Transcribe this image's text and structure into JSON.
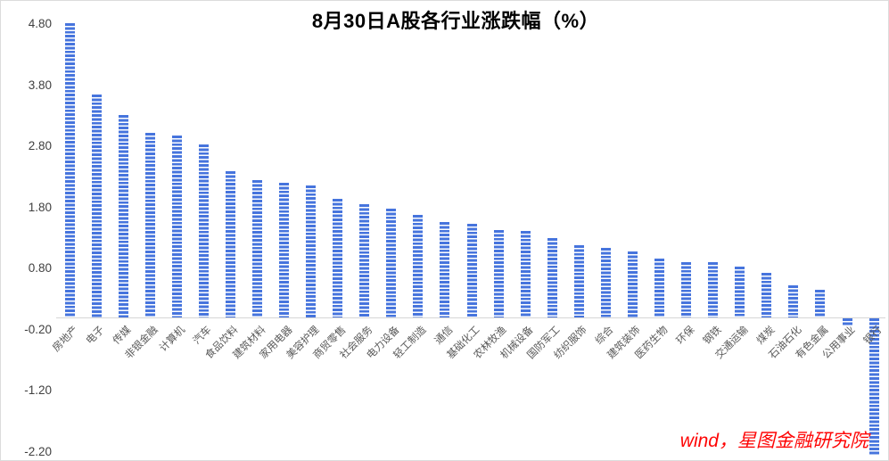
{
  "page": {
    "title": "8月30日A股各行业涨跌幅（%）",
    "watermark": "wind，星图金融研究院"
  },
  "colors": {
    "bar": "#4674dd",
    "axis_line": "#d6d6d6",
    "tick_label": "#404040",
    "category_label": "#595959",
    "title": "#000000",
    "watermark": "#fe0505"
  },
  "chart_data": {
    "type": "bar",
    "title": "8月30日A股各行业涨跌幅（%）",
    "xlabel": "",
    "ylabel": "",
    "grid": false,
    "legend": false,
    "bar_style": "horizontal-striped-blue",
    "ylim": [
      -2.3,
      4.9
    ],
    "y_ticks": [
      4.8,
      3.8,
      2.8,
      1.8,
      0.8,
      -0.2,
      -1.2,
      -2.2
    ],
    "y_tick_labels": [
      "4.80",
      "3.80",
      "2.80",
      "1.80",
      "0.80",
      "-0.20",
      "-1.20",
      "-2.20"
    ],
    "categories": [
      "房地产",
      "电子",
      "传媒",
      "非银金融",
      "计算机",
      "汽车",
      "食品饮料",
      "建筑材料",
      "家用电器",
      "美容护理",
      "商贸零售",
      "社会服务",
      "电力设备",
      "轻工制造",
      "通信",
      "基础化工",
      "农林牧渔",
      "机械设备",
      "国防军工",
      "纺织服饰",
      "综合",
      "建筑装饰",
      "医药生物",
      "环保",
      "钢铁",
      "交通运输",
      "煤炭",
      "石油石化",
      "有色金属",
      "公用事业",
      "银行"
    ],
    "values": [
      4.82,
      3.65,
      3.32,
      3.02,
      2.98,
      2.83,
      2.4,
      2.25,
      2.21,
      2.16,
      1.94,
      1.85,
      1.78,
      1.68,
      1.56,
      1.54,
      1.43,
      1.42,
      1.3,
      1.18,
      1.14,
      1.08,
      0.96,
      0.9,
      0.91,
      0.83,
      0.73,
      0.53,
      0.45,
      -0.12,
      -2.23
    ],
    "source_note": "wind，星图金融研究院"
  }
}
